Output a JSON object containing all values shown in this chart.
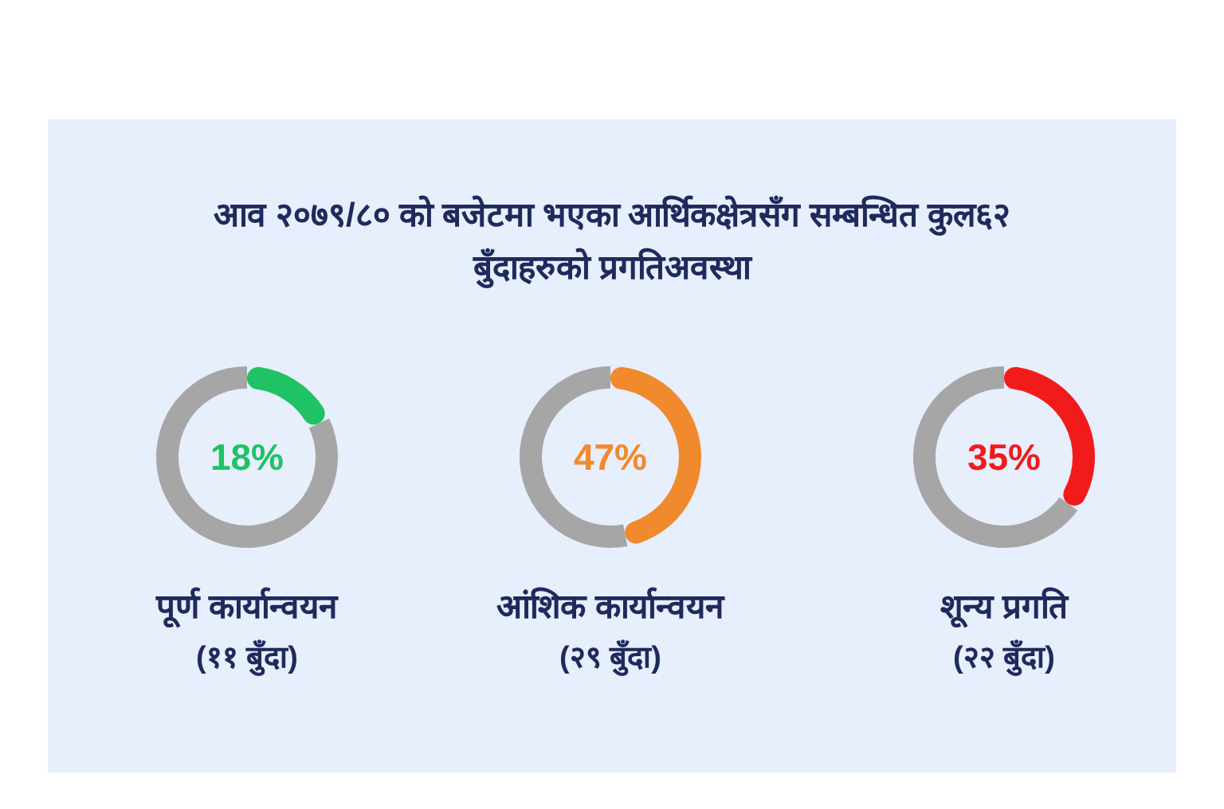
{
  "chart_data": [
    {
      "type": "donut",
      "title": "पूर्ण कार्यान्वयन",
      "subtitle": "(११ बुँदा)",
      "categories": [
        null,
        null
      ],
      "values": [
        18,
        82
      ],
      "colors": [
        "#1fc264",
        "#a6a6a6"
      ],
      "value_labels": [
        "18%",
        null
      ],
      "annotations": [
        "आव २०७९/८० को बजेटमा भएका आर्थिकक्षेत्रसँग सम्बन्धित कुल६२ बुँदाहरुको प्रगतिअवस्था"
      ]
    },
    {
      "type": "donut",
      "title": "आंशिक कार्यान्वयन",
      "subtitle": "(२९ बुँदा)",
      "categories": [
        null,
        null
      ],
      "values": [
        47,
        53
      ],
      "colors": [
        "#f08a2c",
        "#a6a6a6"
      ],
      "value_labels": [
        "47%",
        null
      ]
    },
    {
      "type": "donut",
      "title": "शून्य प्रगति",
      "subtitle": "(२२ बुँदा)",
      "categories": [
        null,
        null
      ],
      "values": [
        35,
        65
      ],
      "colors": [
        "#f21b1b",
        "#a6a6a6"
      ],
      "value_labels": [
        "35%",
        null
      ]
    }
  ]
}
